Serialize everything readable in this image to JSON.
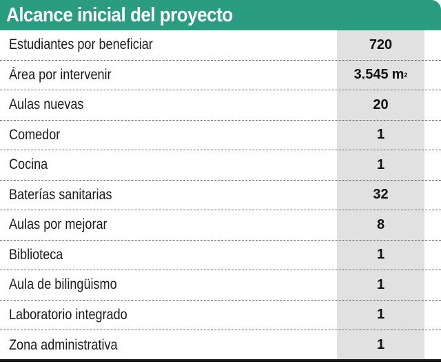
{
  "header": {
    "title": "Alcance inicial del proyecto"
  },
  "colors": {
    "header_bg": "#2a9c7f",
    "value_column_bg": "#e1e1e1"
  },
  "rows": [
    {
      "label": "Estudiantes por beneficiar",
      "value": "720"
    },
    {
      "label": "Área por intervenir",
      "value": "3.545",
      "unit": "m",
      "unit_exponent": "2"
    },
    {
      "label": "Aulas nuevas",
      "value": "20"
    },
    {
      "label": "Comedor",
      "value": "1"
    },
    {
      "label": "Cocina",
      "value": "1"
    },
    {
      "label": "Baterías sanitarias",
      "value": "32"
    },
    {
      "label": "Aulas por mejorar",
      "value": "8"
    },
    {
      "label": "Biblioteca",
      "value": "1"
    },
    {
      "label": "Aula de bilingüismo",
      "value": "1"
    },
    {
      "label": "Laboratorio integrado",
      "value": "1"
    },
    {
      "label": "Zona administrativa",
      "value": "1"
    }
  ]
}
